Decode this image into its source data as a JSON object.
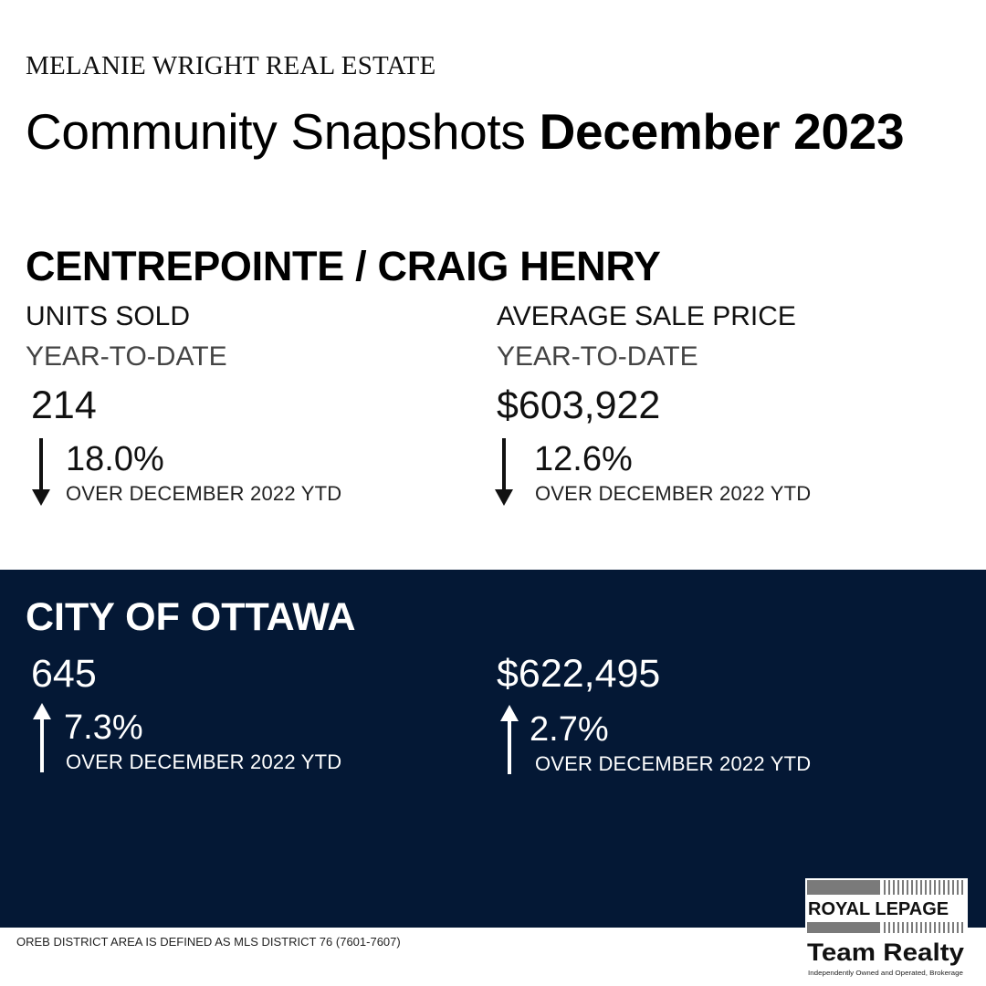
{
  "header": {
    "brand": "MELANIE WRIGHT REAL ESTATE",
    "title_regular": "Community Snapshots",
    "title_bold": "December 2023"
  },
  "community": {
    "name": "CENTREPOINTE / CRAIG HENRY",
    "units": {
      "label": "UNITS SOLD",
      "period": "YEAR-TO-DATE",
      "value": "214",
      "change": "18.0%",
      "direction": "down",
      "comparison": "OVER DECEMBER 2022 YTD"
    },
    "price": {
      "label": "AVERAGE SALE PRICE",
      "period": "YEAR-TO-DATE",
      "value": "$603,922",
      "change": "12.6%",
      "direction": "down",
      "comparison": "OVER DECEMBER 2022 YTD"
    }
  },
  "city": {
    "name": "CITY OF OTTAWA",
    "units": {
      "value": "645",
      "change": "7.3%",
      "direction": "up",
      "comparison": "OVER DECEMBER 2022 YTD"
    },
    "price": {
      "value": "$622,495",
      "change": "2.7%",
      "direction": "up",
      "comparison": "OVER DECEMBER 2022 YTD"
    }
  },
  "footer": {
    "note": "OREB DISTRICT AREA IS DEFINED AS MLS DISTRICT 76 (7601-7607)"
  },
  "logo": {
    "line1": "ROYAL LEPAGE",
    "line2": "Team Realty",
    "tagline": "Independently Owned and Operated, Brokerage"
  },
  "colors": {
    "band_background": "#041835",
    "text_dark": "#111111",
    "text_light": "#ffffff"
  },
  "icons": {
    "down": "arrow-down-icon",
    "up": "arrow-up-icon"
  }
}
